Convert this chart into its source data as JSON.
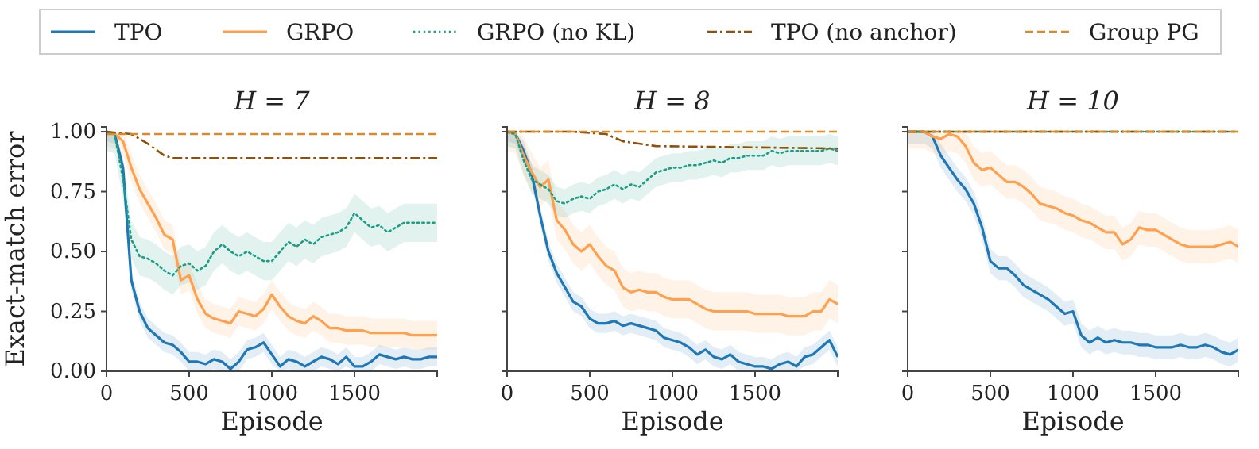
{
  "chart_data": [
    {
      "type": "line",
      "title": "H = 7",
      "xlabel": "Episode",
      "ylabel": "Exact-match error",
      "legend": "top",
      "xlim": [
        0,
        2000
      ],
      "xticks": [
        0,
        500,
        1000,
        1500
      ],
      "ylim": [
        0,
        1.02
      ],
      "yticks": [
        {
          "value": 0,
          "label": "0.00"
        },
        {
          "value": 0.25,
          "label": "0.25"
        },
        {
          "value": 0.5,
          "label": "0.50"
        },
        {
          "value": 0.75,
          "label": "0.75"
        },
        {
          "value": 1,
          "label": "1.00"
        }
      ],
      "x": [
        0,
        50,
        100,
        150,
        200,
        250,
        300,
        350,
        400,
        450,
        500,
        550,
        600,
        650,
        700,
        750,
        800,
        850,
        900,
        950,
        1000,
        1050,
        1100,
        1150,
        1200,
        1250,
        1300,
        1350,
        1400,
        1450,
        1500,
        1550,
        1600,
        1650,
        1700,
        1750,
        1800,
        1850,
        1900,
        1950,
        2000
      ],
      "series": [
        {
          "name": "TPO",
          "color": "#1f77b4",
          "line_style": "solid",
          "values": [
            1,
            0.99,
            0.85,
            0.38,
            0.25,
            0.18,
            0.15,
            0.12,
            0.11,
            0.08,
            0.04,
            0.04,
            0.03,
            0.05,
            0.04,
            0.01,
            0.04,
            0.09,
            0.1,
            0.12,
            0.07,
            0.02,
            0.05,
            0.04,
            0.02,
            0.04,
            0.06,
            0.05,
            0.03,
            0.06,
            0.02,
            0.02,
            0.04,
            0.07,
            0.06,
            0.05,
            0.06,
            0.05,
            0.05,
            0.06,
            0.06
          ],
          "lower": [
            0.96,
            0.95,
            0.81,
            0.34,
            0.21,
            0.14,
            0.11,
            0.08,
            0.07,
            0.04,
            0,
            0,
            0,
            0.01,
            0,
            0,
            0,
            0.05,
            0.06,
            0.08,
            0.03,
            0,
            0.01,
            0,
            0,
            0,
            0.02,
            0.01,
            0,
            0.02,
            0,
            0,
            0,
            0.03,
            0.02,
            0.01,
            0.02,
            0.01,
            0.01,
            0.02,
            0.02
          ],
          "upper": [
            1,
            1,
            0.89,
            0.42,
            0.29,
            0.22,
            0.19,
            0.16,
            0.15,
            0.12,
            0.08,
            0.08,
            0.07,
            0.09,
            0.08,
            0.05,
            0.08,
            0.13,
            0.14,
            0.16,
            0.11,
            0.06,
            0.09,
            0.08,
            0.06,
            0.08,
            0.1,
            0.09,
            0.07,
            0.1,
            0.06,
            0.06,
            0.08,
            0.11,
            0.1,
            0.09,
            0.1,
            0.09,
            0.09,
            0.1,
            0.1
          ]
        },
        {
          "name": "GRPO",
          "color": "#ffa04f",
          "line_style": "solid",
          "values": [
            1,
            0.99,
            0.96,
            0.85,
            0.76,
            0.7,
            0.64,
            0.57,
            0.55,
            0.38,
            0.4,
            0.3,
            0.24,
            0.22,
            0.21,
            0.2,
            0.25,
            0.24,
            0.23,
            0.26,
            0.32,
            0.27,
            0.23,
            0.21,
            0.2,
            0.23,
            0.21,
            0.18,
            0.18,
            0.17,
            0.17,
            0.17,
            0.16,
            0.16,
            0.16,
            0.16,
            0.16,
            0.15,
            0.15,
            0.15,
            0.15
          ],
          "lower": [
            0.94,
            0.93,
            0.9,
            0.79,
            0.7,
            0.64,
            0.58,
            0.51,
            0.49,
            0.32,
            0.34,
            0.24,
            0.18,
            0.16,
            0.15,
            0.14,
            0.19,
            0.18,
            0.17,
            0.2,
            0.26,
            0.21,
            0.17,
            0.15,
            0.14,
            0.17,
            0.15,
            0.12,
            0.12,
            0.11,
            0.11,
            0.11,
            0.1,
            0.1,
            0.1,
            0.1,
            0.1,
            0.09,
            0.09,
            0.09,
            0.09
          ],
          "upper": [
            1,
            1,
            1,
            0.91,
            0.82,
            0.76,
            0.7,
            0.63,
            0.61,
            0.44,
            0.46,
            0.36,
            0.3,
            0.28,
            0.27,
            0.26,
            0.31,
            0.3,
            0.29,
            0.32,
            0.38,
            0.33,
            0.29,
            0.27,
            0.26,
            0.29,
            0.27,
            0.24,
            0.24,
            0.23,
            0.23,
            0.23,
            0.22,
            0.22,
            0.22,
            0.22,
            0.22,
            0.21,
            0.21,
            0.21,
            0.21
          ]
        },
        {
          "name": "GRPO (no KL)",
          "color": "#1a9e85",
          "line_style": "dotted",
          "values": [
            1,
            0.99,
            0.8,
            0.55,
            0.48,
            0.47,
            0.45,
            0.42,
            0.4,
            0.44,
            0.45,
            0.42,
            0.44,
            0.5,
            0.53,
            0.5,
            0.48,
            0.5,
            0.48,
            0.46,
            0.46,
            0.5,
            0.54,
            0.52,
            0.55,
            0.53,
            0.56,
            0.57,
            0.58,
            0.6,
            0.66,
            0.63,
            0.6,
            0.61,
            0.58,
            0.6,
            0.62,
            0.62,
            0.62,
            0.62,
            0.62
          ],
          "lower": [
            0.92,
            0.91,
            0.72,
            0.47,
            0.4,
            0.39,
            0.37,
            0.34,
            0.32,
            0.36,
            0.37,
            0.34,
            0.36,
            0.42,
            0.45,
            0.42,
            0.4,
            0.42,
            0.4,
            0.38,
            0.38,
            0.42,
            0.46,
            0.44,
            0.47,
            0.45,
            0.48,
            0.49,
            0.5,
            0.52,
            0.58,
            0.55,
            0.52,
            0.53,
            0.5,
            0.52,
            0.54,
            0.54,
            0.54,
            0.54,
            0.54
          ],
          "upper": [
            1,
            1,
            0.88,
            0.63,
            0.56,
            0.55,
            0.53,
            0.5,
            0.48,
            0.52,
            0.53,
            0.5,
            0.52,
            0.58,
            0.61,
            0.58,
            0.56,
            0.58,
            0.56,
            0.54,
            0.54,
            0.58,
            0.62,
            0.6,
            0.63,
            0.61,
            0.64,
            0.65,
            0.66,
            0.68,
            0.74,
            0.71,
            0.68,
            0.69,
            0.66,
            0.68,
            0.7,
            0.7,
            0.7,
            0.7,
            0.7
          ]
        },
        {
          "name": "TPO (no anchor)",
          "color": "#8c510a",
          "line_style": "dashdot",
          "x": [
            0,
            150,
            250,
            350,
            400,
            2000
          ],
          "values": [
            1,
            0.99,
            0.95,
            0.9,
            0.89,
            0.89
          ]
        },
        {
          "name": "Group PG",
          "color": "#d98b2b",
          "line_style": "dashed",
          "x": [
            0,
            2000
          ],
          "values": [
            0.99,
            0.99
          ]
        }
      ]
    },
    {
      "type": "line",
      "title": "H = 8",
      "xlabel": "Episode",
      "tick_labels": "x",
      "xlim": [
        0,
        2000
      ],
      "xticks": [
        0,
        500,
        1000,
        1500
      ],
      "ylim": [
        0,
        1.02
      ],
      "yticks": [
        {
          "value": 0,
          "label": null
        },
        {
          "value": 0.25,
          "label": null
        },
        {
          "value": 0.5,
          "label": null
        },
        {
          "value": 0.75,
          "label": null
        },
        {
          "value": 1,
          "label": null
        }
      ],
      "x": [
        0,
        50,
        100,
        150,
        200,
        250,
        300,
        350,
        400,
        450,
        500,
        550,
        600,
        650,
        700,
        750,
        800,
        850,
        900,
        950,
        1000,
        1050,
        1100,
        1150,
        1200,
        1250,
        1300,
        1350,
        1400,
        1450,
        1500,
        1550,
        1600,
        1650,
        1700,
        1750,
        1800,
        1850,
        1900,
        1950,
        2000
      ],
      "series": [
        {
          "color": "#1f77b4",
          "line_style": "solid",
          "values": [
            1,
            0.99,
            0.92,
            0.82,
            0.65,
            0.5,
            0.41,
            0.35,
            0.29,
            0.27,
            0.22,
            0.2,
            0.2,
            0.21,
            0.19,
            0.2,
            0.19,
            0.18,
            0.17,
            0.14,
            0.13,
            0.12,
            0.1,
            0.07,
            0.09,
            0.06,
            0.05,
            0.07,
            0.04,
            0.03,
            0.02,
            0.02,
            0.01,
            0.03,
            0.04,
            0.02,
            0.06,
            0.07,
            0.1,
            0.13,
            0.06
          ],
          "lower": [
            0.96,
            0.95,
            0.88,
            0.78,
            0.61,
            0.46,
            0.37,
            0.31,
            0.25,
            0.23,
            0.18,
            0.16,
            0.16,
            0.17,
            0.15,
            0.16,
            0.15,
            0.14,
            0.13,
            0.1,
            0.09,
            0.08,
            0.06,
            0.03,
            0.05,
            0.02,
            0.01,
            0.03,
            0,
            0,
            0,
            0,
            0,
            0,
            0,
            0,
            0.02,
            0.03,
            0.06,
            0.09,
            0.02
          ],
          "upper": [
            1,
            1,
            0.96,
            0.86,
            0.69,
            0.54,
            0.45,
            0.39,
            0.33,
            0.31,
            0.26,
            0.24,
            0.24,
            0.25,
            0.23,
            0.24,
            0.23,
            0.22,
            0.21,
            0.18,
            0.17,
            0.16,
            0.14,
            0.11,
            0.13,
            0.1,
            0.09,
            0.11,
            0.08,
            0.07,
            0.06,
            0.06,
            0.05,
            0.07,
            0.08,
            0.06,
            0.1,
            0.11,
            0.14,
            0.17,
            0.1
          ]
        },
        {
          "color": "#ffa04f",
          "line_style": "solid",
          "values": [
            1,
            0.99,
            0.9,
            0.83,
            0.77,
            0.8,
            0.63,
            0.59,
            0.53,
            0.5,
            0.53,
            0.48,
            0.44,
            0.42,
            0.35,
            0.33,
            0.34,
            0.33,
            0.33,
            0.31,
            0.3,
            0.3,
            0.3,
            0.28,
            0.26,
            0.25,
            0.25,
            0.25,
            0.25,
            0.25,
            0.24,
            0.24,
            0.24,
            0.24,
            0.23,
            0.23,
            0.23,
            0.25,
            0.25,
            0.3,
            0.28
          ],
          "lower": [
            0.92,
            0.91,
            0.82,
            0.75,
            0.69,
            0.72,
            0.55,
            0.51,
            0.45,
            0.42,
            0.45,
            0.4,
            0.36,
            0.34,
            0.27,
            0.25,
            0.26,
            0.25,
            0.25,
            0.23,
            0.22,
            0.22,
            0.22,
            0.2,
            0.18,
            0.17,
            0.17,
            0.17,
            0.17,
            0.17,
            0.16,
            0.16,
            0.16,
            0.16,
            0.15,
            0.15,
            0.15,
            0.17,
            0.17,
            0.22,
            0.2
          ],
          "upper": [
            1,
            1,
            0.98,
            0.91,
            0.85,
            0.88,
            0.71,
            0.67,
            0.61,
            0.58,
            0.61,
            0.56,
            0.52,
            0.5,
            0.43,
            0.41,
            0.42,
            0.41,
            0.41,
            0.39,
            0.38,
            0.38,
            0.38,
            0.36,
            0.34,
            0.33,
            0.33,
            0.33,
            0.33,
            0.33,
            0.32,
            0.32,
            0.32,
            0.32,
            0.31,
            0.31,
            0.31,
            0.33,
            0.33,
            0.38,
            0.36
          ]
        },
        {
          "color": "#1a9e85",
          "line_style": "dotted",
          "values": [
            1,
            0.99,
            0.88,
            0.8,
            0.78,
            0.76,
            0.71,
            0.7,
            0.72,
            0.73,
            0.72,
            0.75,
            0.76,
            0.78,
            0.76,
            0.78,
            0.77,
            0.8,
            0.83,
            0.84,
            0.85,
            0.85,
            0.86,
            0.86,
            0.87,
            0.88,
            0.87,
            0.89,
            0.89,
            0.9,
            0.9,
            0.9,
            0.92,
            0.91,
            0.92,
            0.92,
            0.92,
            0.92,
            0.92,
            0.93,
            0.92
          ],
          "lower": [
            0.94,
            0.93,
            0.82,
            0.74,
            0.72,
            0.7,
            0.65,
            0.64,
            0.66,
            0.67,
            0.66,
            0.69,
            0.7,
            0.72,
            0.7,
            0.72,
            0.71,
            0.74,
            0.77,
            0.78,
            0.79,
            0.79,
            0.8,
            0.8,
            0.81,
            0.82,
            0.81,
            0.83,
            0.83,
            0.84,
            0.84,
            0.84,
            0.86,
            0.85,
            0.86,
            0.86,
            0.86,
            0.86,
            0.86,
            0.87,
            0.86
          ],
          "upper": [
            1,
            1,
            0.94,
            0.86,
            0.84,
            0.82,
            0.77,
            0.76,
            0.78,
            0.79,
            0.78,
            0.81,
            0.82,
            0.84,
            0.82,
            0.84,
            0.83,
            0.86,
            0.89,
            0.9,
            0.91,
            0.91,
            0.92,
            0.92,
            0.93,
            0.94,
            0.93,
            0.95,
            0.95,
            0.96,
            0.96,
            0.96,
            0.98,
            0.97,
            0.98,
            0.98,
            0.98,
            0.98,
            0.98,
            0.99,
            0.98
          ]
        },
        {
          "color": "#8c510a",
          "line_style": "dashdot",
          "x": [
            0,
            400,
            600,
            700,
            900,
            2000
          ],
          "values": [
            1,
            1,
            0.99,
            0.96,
            0.94,
            0.93
          ]
        },
        {
          "color": "#d98b2b",
          "line_style": "dashed",
          "x": [
            0,
            2000
          ],
          "values": [
            1,
            1
          ]
        }
      ]
    },
    {
      "type": "line",
      "title": "H = 10",
      "xlabel": "Episode",
      "tick_labels": "x",
      "xlim": [
        0,
        2000
      ],
      "xticks": [
        0,
        500,
        1000,
        1500
      ],
      "ylim": [
        0,
        1.02
      ],
      "yticks": [
        {
          "value": 0,
          "label": null
        },
        {
          "value": 0.25,
          "label": null
        },
        {
          "value": 0.5,
          "label": null
        },
        {
          "value": 0.75,
          "label": null
        },
        {
          "value": 1,
          "label": null
        }
      ],
      "x": [
        0,
        50,
        100,
        150,
        200,
        250,
        300,
        350,
        400,
        450,
        500,
        550,
        600,
        650,
        700,
        750,
        800,
        850,
        900,
        950,
        1000,
        1050,
        1100,
        1150,
        1200,
        1250,
        1300,
        1350,
        1400,
        1450,
        1500,
        1550,
        1600,
        1650,
        1700,
        1750,
        1800,
        1850,
        1900,
        1950,
        2000
      ],
      "series": [
        {
          "color": "#1f77b4",
          "line_style": "solid",
          "values": [
            1,
            1,
            1,
            0.98,
            0.9,
            0.85,
            0.8,
            0.76,
            0.7,
            0.6,
            0.46,
            0.43,
            0.43,
            0.4,
            0.36,
            0.34,
            0.32,
            0.3,
            0.27,
            0.24,
            0.25,
            0.15,
            0.12,
            0.14,
            0.12,
            0.13,
            0.12,
            0.12,
            0.11,
            0.11,
            0.1,
            0.1,
            0.1,
            0.11,
            0.1,
            0.1,
            0.11,
            0.1,
            0.08,
            0.07,
            0.09
          ],
          "lower": [
            0.95,
            0.95,
            0.95,
            0.93,
            0.85,
            0.8,
            0.75,
            0.71,
            0.65,
            0.55,
            0.41,
            0.38,
            0.38,
            0.35,
            0.31,
            0.29,
            0.27,
            0.25,
            0.22,
            0.19,
            0.2,
            0.1,
            0.07,
            0.09,
            0.07,
            0.08,
            0.07,
            0.07,
            0.06,
            0.06,
            0.05,
            0.05,
            0.05,
            0.06,
            0.05,
            0.05,
            0.06,
            0.05,
            0.03,
            0.02,
            0.04
          ],
          "upper": [
            1,
            1,
            1,
            1,
            0.95,
            0.9,
            0.85,
            0.81,
            0.75,
            0.65,
            0.51,
            0.48,
            0.48,
            0.45,
            0.41,
            0.39,
            0.37,
            0.35,
            0.32,
            0.29,
            0.3,
            0.2,
            0.17,
            0.19,
            0.17,
            0.18,
            0.17,
            0.17,
            0.16,
            0.16,
            0.15,
            0.15,
            0.15,
            0.16,
            0.15,
            0.15,
            0.16,
            0.15,
            0.13,
            0.12,
            0.14
          ]
        },
        {
          "color": "#ffa04f",
          "line_style": "solid",
          "values": [
            1,
            1,
            1,
            0.98,
            0.97,
            0.99,
            0.98,
            0.94,
            0.87,
            0.84,
            0.85,
            0.82,
            0.79,
            0.79,
            0.77,
            0.74,
            0.7,
            0.69,
            0.68,
            0.66,
            0.65,
            0.63,
            0.62,
            0.6,
            0.58,
            0.58,
            0.53,
            0.55,
            0.6,
            0.59,
            0.59,
            0.57,
            0.55,
            0.53,
            0.52,
            0.52,
            0.52,
            0.52,
            0.53,
            0.54,
            0.52
          ],
          "lower": [
            0.93,
            0.93,
            0.93,
            0.91,
            0.9,
            0.92,
            0.91,
            0.87,
            0.8,
            0.77,
            0.78,
            0.75,
            0.72,
            0.72,
            0.7,
            0.67,
            0.63,
            0.62,
            0.61,
            0.59,
            0.58,
            0.56,
            0.55,
            0.53,
            0.51,
            0.51,
            0.46,
            0.48,
            0.53,
            0.52,
            0.52,
            0.5,
            0.48,
            0.46,
            0.45,
            0.45,
            0.45,
            0.45,
            0.46,
            0.47,
            0.45
          ],
          "upper": [
            1,
            1,
            1,
            1,
            1,
            1,
            1,
            1,
            0.94,
            0.91,
            0.92,
            0.89,
            0.86,
            0.86,
            0.84,
            0.81,
            0.77,
            0.76,
            0.75,
            0.73,
            0.72,
            0.7,
            0.69,
            0.67,
            0.65,
            0.65,
            0.6,
            0.62,
            0.67,
            0.66,
            0.66,
            0.64,
            0.62,
            0.6,
            0.59,
            0.59,
            0.59,
            0.59,
            0.6,
            0.61,
            0.59
          ]
        },
        {
          "color": "#1a9e85",
          "line_style": "dotted",
          "x": [
            0,
            2000
          ],
          "values": [
            1,
            1
          ]
        },
        {
          "color": "#8c510a",
          "line_style": "dashdot",
          "x": [
            0,
            2000
          ],
          "values": [
            1,
            1
          ]
        },
        {
          "color": "#d98b2b",
          "line_style": "dashed",
          "x": [
            0,
            2000
          ],
          "values": [
            1,
            1
          ]
        }
      ]
    }
  ]
}
